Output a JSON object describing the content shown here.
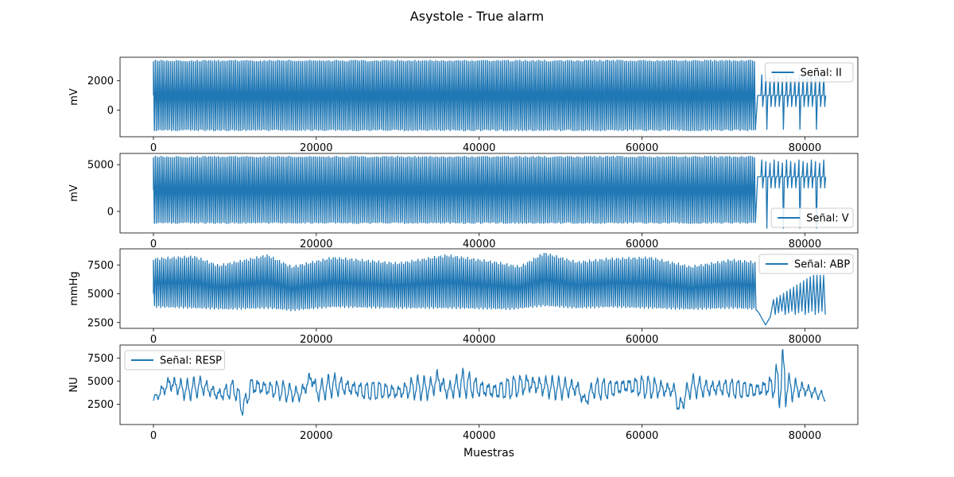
{
  "figure": {
    "title": "Asystole - True alarm",
    "xlabel": "Muestras"
  },
  "style": {
    "line_color": "#1f77b4",
    "axes_color": "#000000",
    "legend_border": "#cccccc"
  },
  "chart_data": [
    {
      "type": "line",
      "ylabel": "mV",
      "xlim": [
        -4100,
        86500
      ],
      "ylim": [
        -1800,
        3600
      ],
      "xticks": [
        0,
        20000,
        40000,
        60000,
        80000
      ],
      "yticks": [
        0,
        2000
      ],
      "grid": false,
      "legend_position": "upper right",
      "series": [
        {
          "name": "Señal: II",
          "description": "dense ECG oscillation 0–74000 between about -1400 and 3400; sparse beats 74000–82500",
          "envelope": {
            "x_range": [
              0,
              74000
            ],
            "min": -1400,
            "max": 3400
          },
          "tail": {
            "x_range": [
              74000,
              82500
            ],
            "baseline": 1000,
            "min": -1300,
            "max": 2400
          }
        }
      ]
    },
    {
      "type": "line",
      "ylabel": "mV",
      "xlim": [
        -4100,
        86500
      ],
      "ylim": [
        -2300,
        6200
      ],
      "xticks": [
        0,
        20000,
        40000,
        60000,
        80000
      ],
      "yticks": [
        0,
        5000
      ],
      "grid": false,
      "legend_position": "lower right",
      "series": [
        {
          "name": "Señal: V",
          "envelope": {
            "x_range": [
              0,
              74000
            ],
            "min": -1300,
            "max": 5900
          },
          "tail": {
            "x_range": [
              74000,
              82500
            ],
            "baseline": 3700,
            "min": -1800,
            "max": 5500
          }
        }
      ]
    },
    {
      "type": "line",
      "ylabel": "mmHg",
      "xlim": [
        -4100,
        86500
      ],
      "ylim": [
        2000,
        8900
      ],
      "xticks": [
        0,
        20000,
        40000,
        60000,
        80000
      ],
      "yticks": [
        2500,
        5000,
        7500
      ],
      "grid": false,
      "legend_position": "upper right",
      "series": [
        {
          "name": "Señal: ABP",
          "upper": [
            [
              0,
              8000
            ],
            [
              5000,
              8200
            ],
            [
              8000,
              7400
            ],
            [
              14000,
              8300
            ],
            [
              17000,
              7300
            ],
            [
              22000,
              8100
            ],
            [
              30000,
              7600
            ],
            [
              36000,
              8300
            ],
            [
              42000,
              7700
            ],
            [
              45000,
              7300
            ],
            [
              48000,
              8500
            ],
            [
              52000,
              7700
            ],
            [
              56000,
              8000
            ],
            [
              61000,
              8100
            ],
            [
              66000,
              7300
            ],
            [
              71000,
              7900
            ],
            [
              74000,
              7700
            ]
          ],
          "lower": [
            [
              0,
              3900
            ],
            [
              5000,
              3800
            ],
            [
              9000,
              3700
            ],
            [
              14000,
              3800
            ],
            [
              17000,
              3600
            ],
            [
              22000,
              3900
            ],
            [
              30000,
              3800
            ],
            [
              36000,
              3800
            ],
            [
              44000,
              3700
            ],
            [
              48000,
              4000
            ],
            [
              52000,
              3800
            ],
            [
              56000,
              3900
            ],
            [
              61000,
              3800
            ],
            [
              66000,
              3700
            ],
            [
              71000,
              3800
            ],
            [
              74000,
              3700
            ]
          ],
          "tail": {
            "x_range": [
              74000,
              82500
            ],
            "min": 2300,
            "max": 6600
          }
        }
      ]
    },
    {
      "type": "line",
      "ylabel": "NU",
      "xlim": [
        -4100,
        86500
      ],
      "ylim": [
        300,
        8900
      ],
      "xticks": [
        0,
        20000,
        40000,
        60000,
        80000
      ],
      "yticks": [
        2500,
        5000,
        7500
      ],
      "grid": false,
      "legend_position": "upper left",
      "series": [
        {
          "name": "Señal: RESP",
          "x": [
            0,
            2000,
            4000,
            6000,
            8000,
            10000,
            11000,
            12000,
            14000,
            16000,
            18000,
            19500,
            20000,
            22000,
            24000,
            26000,
            28000,
            30000,
            32000,
            34000,
            35000,
            36000,
            38000,
            40000,
            42000,
            44000,
            46000,
            48000,
            50000,
            52000,
            53000,
            54000,
            56000,
            58000,
            60000,
            62000,
            64000,
            64500,
            66000,
            68000,
            70000,
            72000,
            74000,
            76000,
            77000,
            77500,
            78000,
            80000,
            82500
          ],
          "mid": [
            3000,
            4800,
            4000,
            4500,
            3500,
            4200,
            2000,
            4500,
            4200,
            3900,
            3500,
            5500,
            3800,
            4600,
            4300,
            3900,
            4000,
            3800,
            4300,
            4200,
            5200,
            3900,
            4800,
            4200,
            3900,
            4300,
            4700,
            4400,
            4200,
            4300,
            2800,
            4200,
            4100,
            4500,
            4400,
            4200,
            4000,
            2000,
            4500,
            4200,
            4300,
            4100,
            4000,
            4500,
            5000,
            5500,
            4200,
            4100,
            3300
          ],
          "amp": [
            300,
            1200,
            1100,
            1000,
            900,
            1100,
            900,
            1200,
            1000,
            1000,
            900,
            1400,
            1100,
            1200,
            1100,
            1100,
            1000,
            1000,
            1200,
            1200,
            1600,
            1100,
            1400,
            1200,
            1100,
            1200,
            1300,
            1200,
            1100,
            1200,
            900,
            1100,
            1100,
            1100,
            1200,
            1100,
            1000,
            900,
            1100,
            1100,
            1100,
            1000,
            1000,
            1400,
            2800,
            3000,
            1500,
            1000,
            400
          ]
        }
      ]
    }
  ]
}
